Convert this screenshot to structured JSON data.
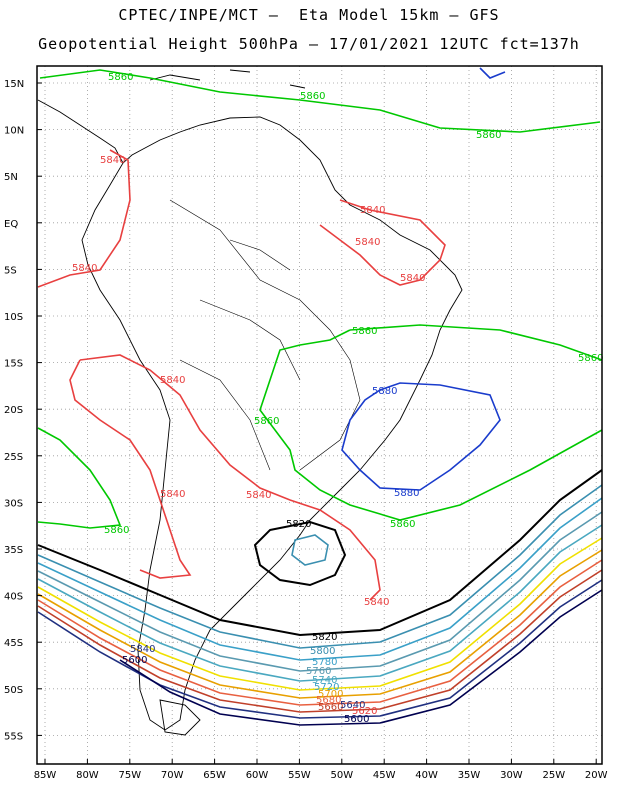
{
  "header": {
    "line1": "CPTEC/INPE/MCT –  Eta Model 15km – GFS",
    "line2": "Geopotential Height 500hPa – 17/01/2021 12UTC fct=137h"
  },
  "axes": {
    "lat_labels": [
      "15N",
      "10N",
      "5N",
      "EQ",
      "5S",
      "10S",
      "15S",
      "20S",
      "25S",
      "30S",
      "35S",
      "40S",
      "45S",
      "50S",
      "55S"
    ],
    "lon_labels": [
      "85W",
      "80W",
      "75W",
      "70W",
      "65W",
      "60W",
      "55W",
      "50W",
      "45W",
      "40W",
      "35W",
      "30W",
      "25W",
      "20W"
    ]
  },
  "colors": {
    "c5860": "#00c800",
    "c5840": "#e84040",
    "c5880": "#1a3ccc",
    "c5820": "#000000",
    "c5800": "#3a8fb0",
    "c5780": "#3aa0c8",
    "c5760": "#5a9ab0",
    "c5740": "#4aa8c0",
    "c5720": "#f0e000",
    "c5700": "#e8a000",
    "c5680": "#e86040",
    "c5660": "#c0402a",
    "c5640": "#203080",
    "c5600": "#000050",
    "land": "#000000"
  },
  "contour_labels": {
    "l5860_a": "5860",
    "l5860_b": "5860",
    "l5860_c": "5860",
    "l5860_d": "5860",
    "l5860_e": "5860",
    "l5860_f": "5860",
    "l5860_g": "5860",
    "l5860_h": "5860",
    "l5840_a": "5840",
    "l5840_b": "5840",
    "l5840_c": "5840",
    "l5840_d": "5840",
    "l5840_e": "5840",
    "l5840_f": "5840",
    "l5840_g": "5840",
    "l5840_h": "5840",
    "l5840_i": "5840",
    "l5840_j": "5840",
    "l5880_a": "5880",
    "l5880_b": "5880",
    "l5820_a": "5820",
    "l5820_b": "5820",
    "l5800_a": "5800",
    "l5780_a": "5780",
    "l5760_a": "5760",
    "l5740_a": "5740",
    "l5720_a": "5720",
    "l5700_a": "5700",
    "l5680_a": "5680",
    "l5660_a": "5660",
    "l5640_a": "5640",
    "l5620_a": "5620",
    "l5600_a": "5600",
    "l5600_b": "5600"
  }
}
